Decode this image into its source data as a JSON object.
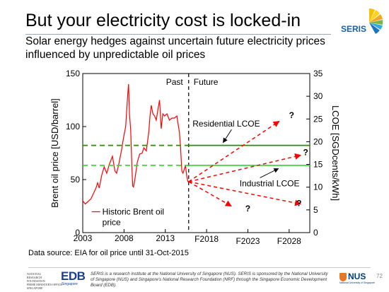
{
  "slide": {
    "title": "But your electricity cost is locked-in",
    "subtitle": "Solar energy hedges against uncertain future electricity prices influenced by unpredictable oil prices",
    "source": "Data source: EIA for oil price until 31-Oct-2015",
    "page_number": "72"
  },
  "logos": {
    "seris": "SERIS",
    "nrf": [
      "NATIONAL",
      "RESEARCH",
      "FOUNDATION",
      "PRIME MINISTER'S OFFICE",
      "SINGAPORE"
    ],
    "edb": "EDB",
    "edb_sub": "Singapore",
    "nus": "NUS",
    "nus_sub": "National University of Singapore"
  },
  "footer": {
    "disclaimer": "SERIS is a research institute at the National University of Singapore (NUS). SERIS is sponsored by the National University of Singapore (NUS) and Singapore's National Research Foundation (NRF) through the Singapore Economic Development Board (EDB)."
  },
  "chart_data": {
    "type": "line",
    "ylabel_left": "Brent oil price [USD/barrel]",
    "ylabel_right": "LCOE [SGDcents/kWh]",
    "ylim_left": [
      0,
      150
    ],
    "ylim_right": [
      0,
      35
    ],
    "xlim": [
      2003,
      2030.5
    ],
    "yticks_left": [
      0,
      50,
      100,
      150
    ],
    "yticks_right": [
      0,
      5,
      10,
      15,
      20,
      25,
      30,
      35
    ],
    "xticks": [
      {
        "label": "2003",
        "x": 2003
      },
      {
        "label": "2008",
        "x": 2008
      },
      {
        "label": "2013",
        "x": 2013
      },
      {
        "label": "F2018",
        "x": 2018
      },
      {
        "label": "F2023",
        "x": 2023
      },
      {
        "label": "F2028",
        "x": 2028
      }
    ],
    "divider_x": 2015.83,
    "region_labels": {
      "past": "Past",
      "future": "Future"
    },
    "series": [
      {
        "name": "Historic Brent oil price",
        "axis": "left",
        "color": "#ff0000",
        "x": [
          2003.0,
          2003.3,
          2003.6,
          2004.0,
          2004.3,
          2004.6,
          2004.8,
          2005.0,
          2005.3,
          2005.6,
          2005.9,
          2006.2,
          2006.6,
          2006.9,
          2007.1,
          2007.4,
          2007.7,
          2007.95,
          2008.2,
          2008.45,
          2008.55,
          2008.65,
          2008.8,
          2008.95,
          2009.05,
          2009.15,
          2009.35,
          2009.6,
          2009.9,
          2010.2,
          2010.4,
          2010.7,
          2011.0,
          2011.15,
          2011.3,
          2011.5,
          2011.7,
          2011.9,
          2012.15,
          2012.3,
          2012.5,
          2012.7,
          2012.9,
          2013.2,
          2013.5,
          2013.8,
          2014.1,
          2014.4,
          2014.5,
          2014.7,
          2014.85,
          2015.0,
          2015.15,
          2015.3,
          2015.45,
          2015.6,
          2015.75,
          2015.83
        ],
        "y": [
          30,
          27,
          29,
          32,
          37,
          42,
          47,
          42,
          54,
          62,
          56,
          64,
          72,
          58,
          56,
          66,
          78,
          90,
          100,
          130,
          140,
          112,
          98,
          62,
          44,
          43,
          52,
          66,
          74,
          75,
          80,
          77,
          95,
          110,
          120,
          112,
          110,
          106,
          118,
          125,
          98,
          112,
          110,
          112,
          106,
          108,
          108,
          110,
          105,
          95,
          80,
          58,
          56,
          60,
          63,
          53,
          48,
          48
        ]
      },
      {
        "name": "Residential LCOE",
        "axis": "right",
        "color": "#2e8b00",
        "style": "solid",
        "x": [
          2015.83,
          2030.5
        ],
        "y": [
          19.2,
          19.2
        ]
      },
      {
        "name": "Residential LCOE (past)",
        "axis": "right",
        "color": "#2e8b00",
        "style": "dashed",
        "x": [
          2003,
          2015.83
        ],
        "y": [
          19.2,
          19.2
        ]
      },
      {
        "name": "Industrial LCOE",
        "axis": "right",
        "color": "#33dd33",
        "style": "solid",
        "x": [
          2015.83,
          2030.5
        ],
        "y": [
          14.8,
          14.8
        ]
      },
      {
        "name": "Industrial LCOE (past)",
        "axis": "right",
        "color": "#33dd33",
        "style": "dashed",
        "x": [
          2003,
          2015.83
        ],
        "y": [
          14.8,
          14.8
        ]
      }
    ],
    "scenarios": {
      "axis": "left",
      "color": "#ff0000",
      "origin": [
        2015.83,
        48
      ],
      "endpoints": [
        {
          "x": 2026.8,
          "y": 105
        },
        {
          "x": 2029.4,
          "y": 73
        },
        {
          "x": 2021.0,
          "y": 25
        },
        {
          "x": 2029.4,
          "y": 27
        }
      ]
    },
    "question_marks": [
      {
        "text": "?",
        "x": 2028.3,
        "y": 108
      },
      {
        "text": "?",
        "x": 2030.0,
        "y": 73
      },
      {
        "text": "?",
        "x": 2023.0,
        "y": 20
      },
      {
        "text": "?",
        "x": 2029.2,
        "y": 25
      }
    ],
    "annotations": [
      {
        "text": "Residential LCOE",
        "x": 2016.3,
        "y_right": 23.3,
        "arrow_to_x": 2020.0,
        "arrow_to_y_right": 19.5
      },
      {
        "text": "Industrial LCOE",
        "x": 2022.0,
        "y_right": 10.2,
        "arrow_to_x": 2026.7,
        "arrow_to_y_right": 14.4
      },
      {
        "text": "Historic Brent oil price",
        "x": 2004.6,
        "y_left": 17
      }
    ]
  }
}
